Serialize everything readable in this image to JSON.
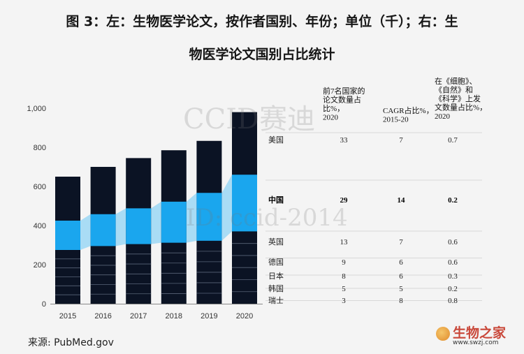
{
  "title_line1": "图 3：左：生物医学论文，按作者国别、年份；单位（千）；右：生",
  "title_line2": "物医学论文国别占比统计",
  "watermark1": "CCID赛迪",
  "watermark2": "ID: ccid-2014",
  "source_label": "来源:",
  "source_value": "PubMed.gov",
  "logo": {
    "name": "生物之家",
    "url": "www.swzj.com"
  },
  "colors": {
    "dark": "#0b1324",
    "highlight": "#1aa6ee",
    "band": "#a9dcf5",
    "separator": "#5a6478"
  },
  "chart_data": {
    "type": "bar",
    "stacked": true,
    "categories": [
      "2015",
      "2016",
      "2017",
      "2018",
      "2019",
      "2020"
    ],
    "totals": [
      650,
      700,
      745,
      785,
      833,
      980
    ],
    "highlight_segment": {
      "bottom": [
        275,
        295,
        305,
        312,
        322,
        370
      ],
      "top": [
        425,
        458,
        488,
        522,
        567,
        660
      ]
    },
    "yticks": [
      "0",
      "200",
      "400",
      "600",
      "800",
      "1,000"
    ],
    "ylim": [
      0,
      1000
    ],
    "table": {
      "headers": [
        "前7名国家的论文数量占比%，2020",
        "CAGR占比%，2015-20",
        "在《细胞》、《自然》和《科学》上发文数量占比%，2020"
      ],
      "rows": [
        {
          "country": "美国",
          "share": "33",
          "cagr": "7",
          "top_journals": "0.7",
          "bold": false
        },
        {
          "country": "中国",
          "share": "29",
          "cagr": "14",
          "top_journals": "0.2",
          "bold": true
        },
        {
          "country": "英国",
          "share": "13",
          "cagr": "7",
          "top_journals": "0.6",
          "bold": false
        },
        {
          "country": "德国",
          "share": "9",
          "cagr": "6",
          "top_journals": "0.6",
          "bold": false
        },
        {
          "country": "日本",
          "share": "8",
          "cagr": "6",
          "top_journals": "0.3",
          "bold": false
        },
        {
          "country": "韩国",
          "share": "5",
          "cagr": "5",
          "top_journals": "0.2",
          "bold": false
        },
        {
          "country": "瑞士",
          "share": "3",
          "cagr": "8",
          "top_journals": "0.8",
          "bold": false
        }
      ]
    }
  }
}
